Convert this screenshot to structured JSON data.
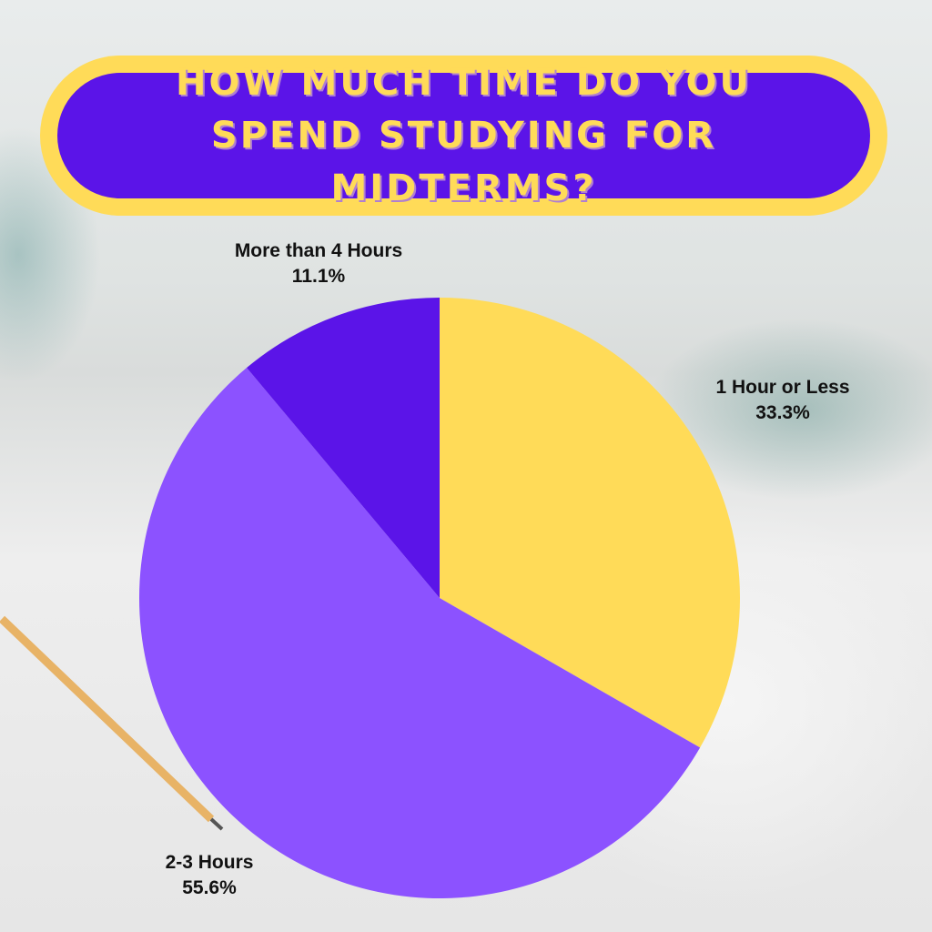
{
  "chart_data": {
    "type": "pie",
    "title": "HOW MUCH TIME DO YOU SPEND STUDYING FOR MIDTERMS?",
    "start": "top, clockwise",
    "slices": [
      {
        "label": "1 Hour or Less",
        "value": 33.3,
        "display": "33.3%",
        "color": "#FFDB58"
      },
      {
        "label": "2-3 Hours",
        "value": 55.6,
        "display": "55.6%",
        "color": "#8C52FF"
      },
      {
        "label": "More than 4 Hours",
        "value": 11.1,
        "display": "11.1%",
        "color": "#5B14E8"
      }
    ]
  },
  "colors": {
    "banner_border": "#FFDB58",
    "banner_fill": "#5B14E8",
    "title_text": "#FFDB58"
  }
}
